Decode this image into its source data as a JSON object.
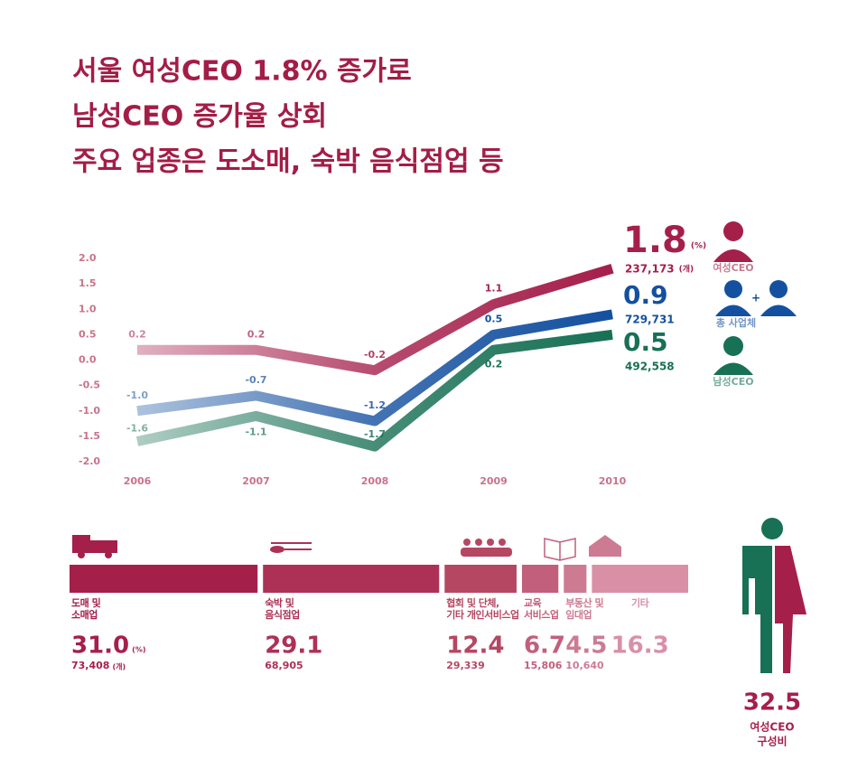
{
  "title": [
    "서울 여성CEO 1.8% 증가로",
    "남성CEO 증가율 상회",
    "주요 업종은 도소매, 숙박 음식점업 등"
  ],
  "chart_data": [
    {
      "type": "line",
      "categories": [
        "2006",
        "2007",
        "2008",
        "2009",
        "2010"
      ],
      "ylim": [
        -2,
        2
      ],
      "yticks": [
        {
          "value": 2,
          "label": "2.0"
        },
        {
          "value": 1.5,
          "label": "1.5"
        },
        {
          "value": 1,
          "label": "1.0"
        },
        {
          "value": 0.5,
          "label": "0.5"
        },
        {
          "value": 0,
          "label": "0.0"
        },
        {
          "value": -0.5,
          "label": "-0.5"
        },
        {
          "value": -1,
          "label": "-1.0"
        },
        {
          "value": -1.5,
          "label": "-1.5"
        },
        {
          "value": -2,
          "label": "-2.0"
        }
      ],
      "value_unit": "(%)",
      "count_unit": "(개)",
      "series": [
        {
          "name": "여성CEO",
          "color": "#a51f4b",
          "values": [
            0.2,
            0.2,
            -0.2,
            1.1,
            1.8
          ],
          "value_labels": [
            "0.2",
            "0.2",
            "-0.2",
            "1.1",
            "1.8"
          ],
          "count": 237173,
          "count_label": "237,173"
        },
        {
          "name": "총 사업체",
          "color": "#1450a0",
          "values": [
            -1,
            -0.7,
            -1.2,
            0.5,
            0.9
          ],
          "value_labels": [
            "-1.0",
            "-0.7",
            "-1.2",
            "0.5",
            "0.9"
          ],
          "count": 729731,
          "count_label": "729,731"
        },
        {
          "name": "남성CEO",
          "color": "#187055",
          "values": [
            -1.6,
            -1.1,
            -1.7,
            0.2,
            0.5
          ],
          "value_labels": [
            "-1.6",
            "-1.1",
            "-1.7",
            "0.2",
            "0.5"
          ],
          "count": 492558,
          "count_label": "492,558"
        }
      ]
    },
    {
      "type": "stacked-bar",
      "categories": [
        [
          "도매 및",
          "소매업"
        ],
        [
          "숙박 및",
          "음식점업"
        ],
        [
          "협회 및 단체,",
          "기타 개인서비스업"
        ],
        [
          "교육",
          "서비스업"
        ],
        [
          "부동산 및",
          "임대업"
        ],
        [
          "기타"
        ]
      ],
      "values": [
        31.0,
        29.1,
        12.4,
        6.7,
        4.5,
        16.3
      ],
      "value_labels": [
        "31.0",
        "29.1",
        "12.4",
        "6.7",
        "4.5",
        "16.3"
      ],
      "counts": [
        73408,
        68905,
        29339,
        15806,
        10640,
        null
      ],
      "count_labels": [
        "73,408",
        "68,905",
        "29,339",
        "15,806",
        "10,640",
        null
      ],
      "colors": [
        "#a51f4b",
        "#ad3156",
        "#b54763",
        "#c15f7c",
        "#cc7b93",
        "#d990a7"
      ],
      "value_unit": "(%)",
      "count_unit": "(개)"
    }
  ],
  "female_share": {
    "value": 32.5,
    "label": "32.5",
    "caption": [
      "여성CEO",
      "구성비"
    ]
  }
}
